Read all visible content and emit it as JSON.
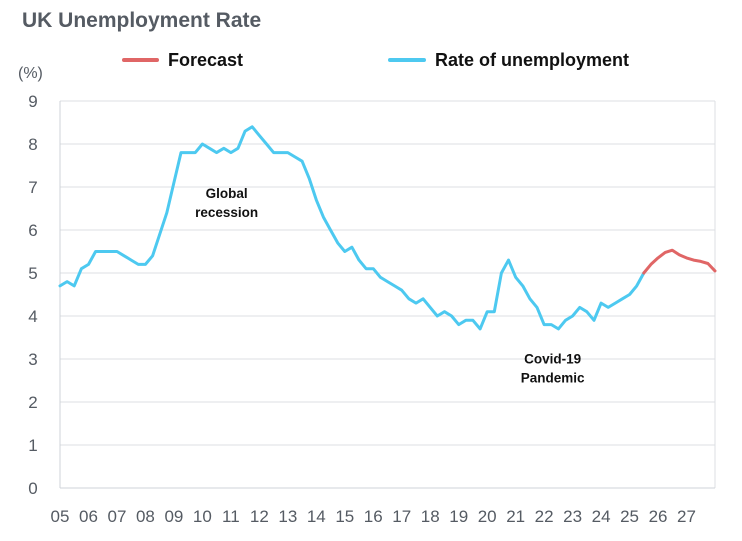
{
  "chart_data": {
    "type": "line",
    "title": "UK Unemployment Rate",
    "ylabel": "(%)",
    "xlabel": "",
    "ylim": [
      0,
      9
    ],
    "yticks": [
      0,
      1,
      2,
      3,
      4,
      5,
      6,
      7,
      8,
      9
    ],
    "xticks": [
      "05",
      "06",
      "07",
      "08",
      "09",
      "10",
      "11",
      "12",
      "13",
      "14",
      "15",
      "16",
      "17",
      "18",
      "19",
      "20",
      "21",
      "22",
      "23",
      "24",
      "25",
      "26",
      "27"
    ],
    "grid": true,
    "legend_position": "top",
    "legend": [
      {
        "label": "Forecast",
        "color": "#e06666"
      },
      {
        "label": "Rate of unemployment",
        "color": "#4dc9f0"
      }
    ],
    "series": [
      {
        "name": "Rate of unemployment",
        "color": "#4dc9f0",
        "x": [
          5.0,
          5.25,
          5.5,
          5.75,
          6.0,
          6.25,
          6.5,
          6.75,
          7.0,
          7.25,
          7.5,
          7.75,
          8.0,
          8.25,
          8.5,
          8.75,
          9.0,
          9.25,
          9.5,
          9.75,
          10.0,
          10.25,
          10.5,
          10.75,
          11.0,
          11.25,
          11.5,
          11.75,
          12.0,
          12.25,
          12.5,
          12.75,
          13.0,
          13.25,
          13.5,
          13.75,
          14.0,
          14.25,
          14.5,
          14.75,
          15.0,
          15.25,
          15.5,
          15.75,
          16.0,
          16.25,
          16.5,
          16.75,
          17.0,
          17.25,
          17.5,
          17.75,
          18.0,
          18.25,
          18.5,
          18.75,
          19.0,
          19.25,
          19.5,
          19.75,
          20.0,
          20.25,
          20.5,
          20.75,
          21.0,
          21.25,
          21.5,
          21.75,
          22.0,
          22.25,
          22.5,
          22.75,
          23.0,
          23.25,
          23.5,
          23.75,
          24.0,
          24.25,
          24.5,
          24.75,
          25.0,
          25.25,
          25.5
        ],
        "values": [
          4.7,
          4.8,
          4.7,
          5.1,
          5.2,
          5.5,
          5.5,
          5.5,
          5.5,
          5.4,
          5.3,
          5.2,
          5.2,
          5.4,
          5.9,
          6.4,
          7.1,
          7.8,
          7.8,
          7.8,
          8.0,
          7.9,
          7.8,
          7.9,
          7.8,
          7.9,
          8.3,
          8.4,
          8.2,
          8.0,
          7.8,
          7.8,
          7.8,
          7.7,
          7.6,
          7.2,
          6.7,
          6.3,
          6.0,
          5.7,
          5.5,
          5.6,
          5.3,
          5.1,
          5.1,
          4.9,
          4.8,
          4.7,
          4.6,
          4.4,
          4.3,
          4.4,
          4.2,
          4.0,
          4.1,
          4.0,
          3.8,
          3.9,
          3.9,
          3.7,
          4.1,
          4.1,
          5.0,
          5.3,
          4.9,
          4.7,
          4.4,
          4.2,
          3.8,
          3.8,
          3.7,
          3.9,
          4.0,
          4.2,
          4.1,
          3.9,
          4.3,
          4.2,
          4.3,
          4.4,
          4.5,
          4.7,
          5.0
        ]
      },
      {
        "name": "Forecast",
        "color": "#e06666",
        "x": [
          25.5,
          25.75,
          26.0,
          26.25,
          26.5,
          26.75,
          27.0,
          27.25,
          27.5,
          27.75,
          28.0
        ],
        "values": [
          5.0,
          5.2,
          5.35,
          5.48,
          5.53,
          5.42,
          5.35,
          5.3,
          5.27,
          5.22,
          5.05
        ]
      }
    ],
    "annotations": [
      {
        "lines": [
          "Global",
          "recession"
        ],
        "x": 10.85,
        "y": 6.75
      },
      {
        "lines": [
          "Covid-19",
          "Pandemic"
        ],
        "x": 22.3,
        "y": 2.9
      }
    ]
  }
}
